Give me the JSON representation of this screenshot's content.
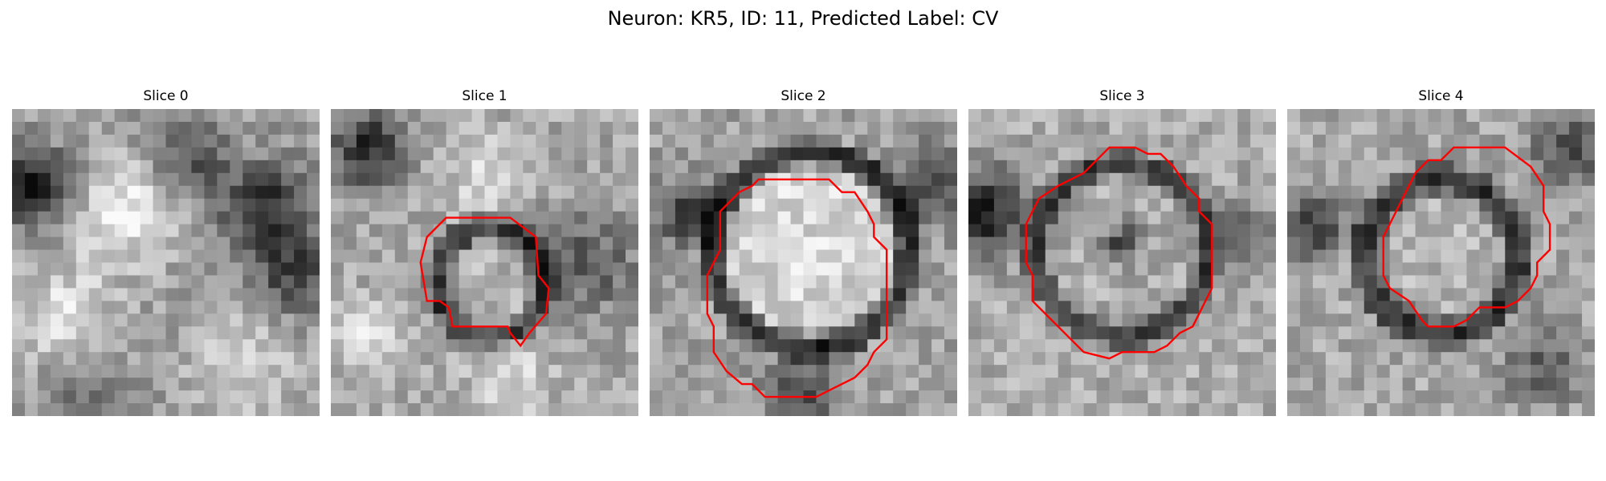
{
  "figure": {
    "title": "Neuron: KR5, ID: 11, Predicted Label: CV",
    "outline_color": "#ff0000",
    "colormap": "gray",
    "panels": [
      {
        "title": "Slice 0",
        "has_outline": false
      },
      {
        "title": "Slice 1",
        "has_outline": true
      },
      {
        "title": "Slice 2",
        "has_outline": true
      },
      {
        "title": "Slice 3",
        "has_outline": true
      },
      {
        "title": "Slice 4",
        "has_outline": true
      }
    ]
  }
}
